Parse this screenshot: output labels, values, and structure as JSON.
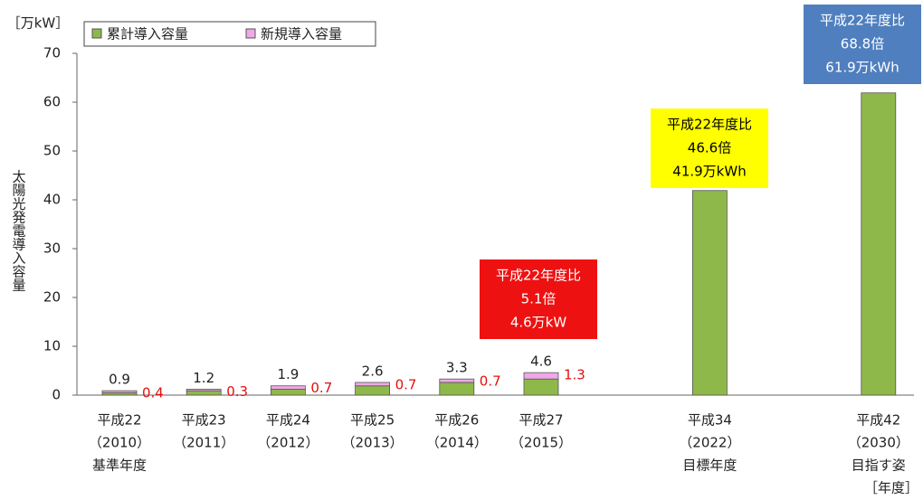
{
  "chart_data": {
    "type": "stacked_bar",
    "y_unit": "［万kW］",
    "x_unit": "［年度］",
    "y_label": "太陽光発電導入容量",
    "categories": [
      [
        "平成22",
        "（2010）",
        "基準年度"
      ],
      [
        "平成23",
        "（2011）"
      ],
      [
        "平成24",
        "（2012）"
      ],
      [
        "平成25",
        "（2013）"
      ],
      [
        "平成26",
        "（2014）"
      ],
      [
        "平成27",
        "（2015）"
      ],
      [
        "平成34",
        "（2022）",
        "目標年度"
      ],
      [
        "平成42",
        "（2030）",
        "目指す姿"
      ]
    ],
    "series": [
      {
        "name": "累計導入容量",
        "color": "#8fb84a",
        "values": [
          0.5,
          0.9,
          1.2,
          1.9,
          2.6,
          3.3,
          41.9,
          61.9
        ]
      },
      {
        "name": "新規導入容量",
        "color": "#f0a8e8",
        "values": [
          0.4,
          0.3,
          0.7,
          0.7,
          0.7,
          1.3,
          null,
          null
        ]
      }
    ],
    "totals": [
      0.9,
      1.2,
      1.9,
      2.6,
      3.3,
      4.6,
      null,
      null
    ],
    "annotations": [
      {
        "lines": [
          "平成22年度比",
          "5.1倍",
          "4.6万kW"
        ],
        "color": "#ee1111",
        "text_color": "#ffffff"
      },
      {
        "lines": [
          "平成22年度比",
          "46.6倍",
          "41.9万kWh"
        ],
        "color": "#ffff00",
        "text_color": "#000000"
      },
      {
        "lines": [
          "平成22年度比",
          "68.8倍",
          "61.9万kWh"
        ],
        "color": "#4f7fbf",
        "text_color": "#ffffff"
      }
    ],
    "ylim": [
      0,
      70
    ],
    "yticks": [
      0,
      10,
      20,
      30,
      40,
      50,
      60,
      70
    ],
    "grid": false,
    "legend": "top-left"
  }
}
